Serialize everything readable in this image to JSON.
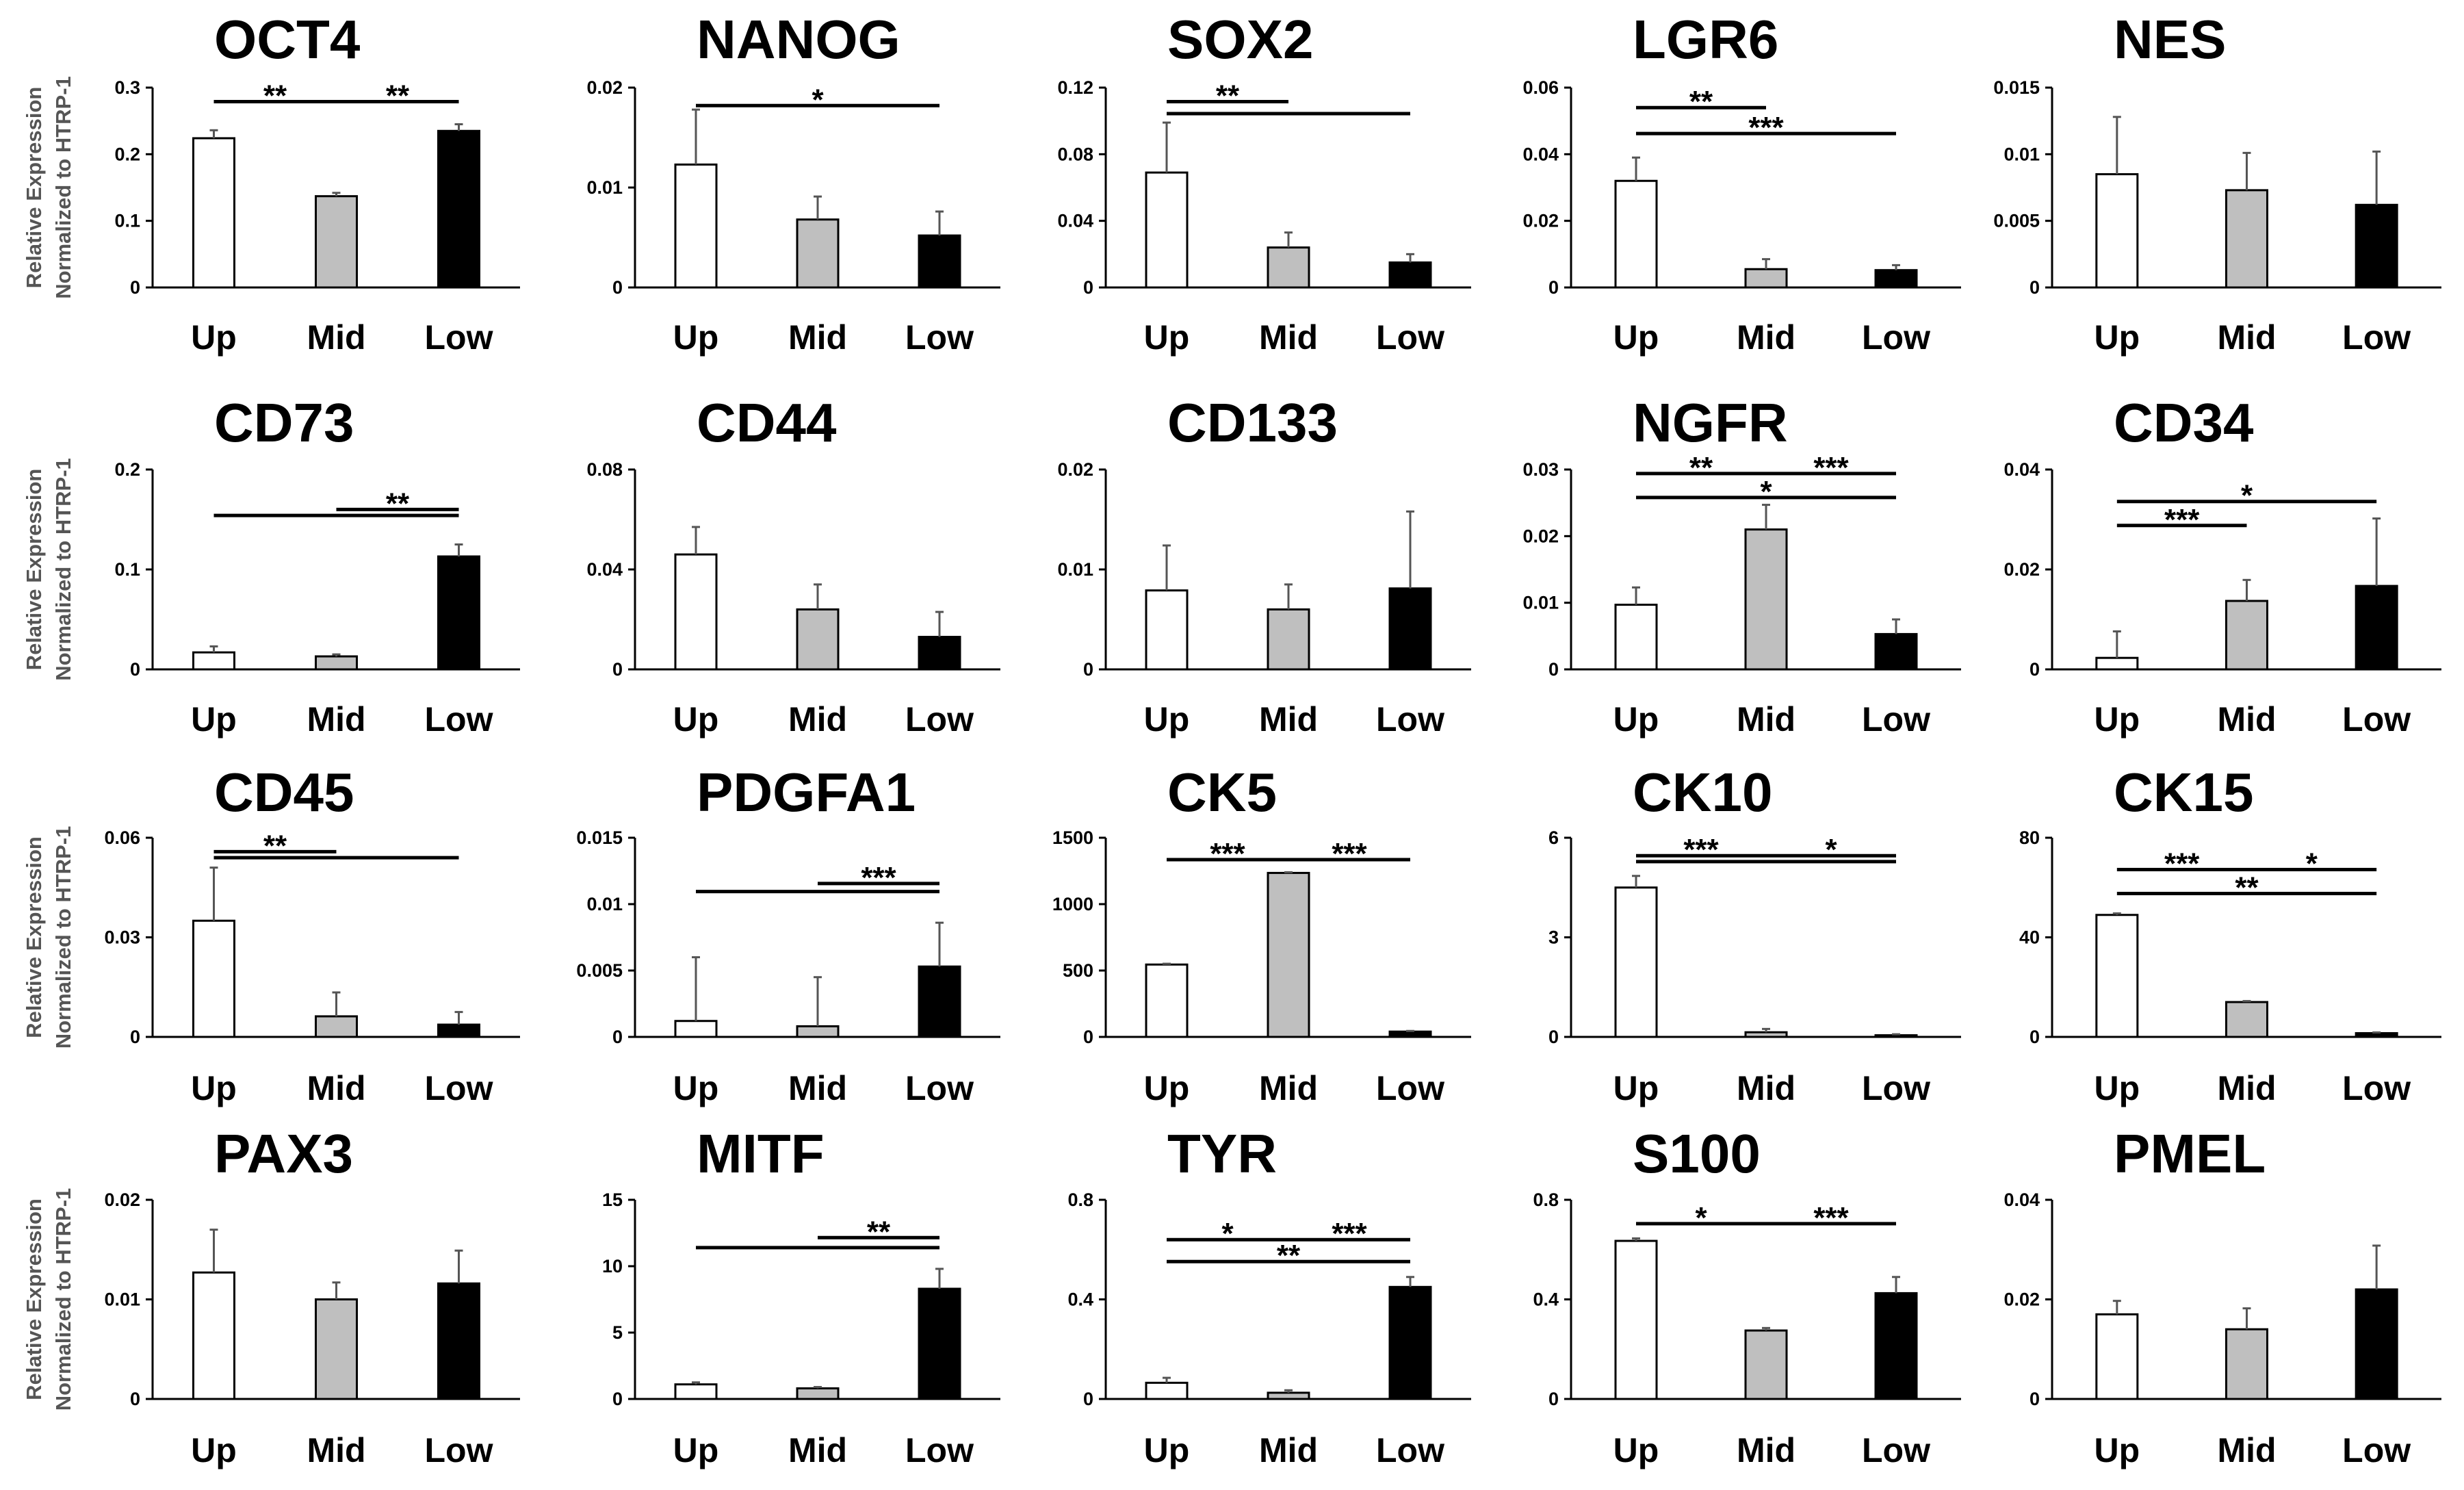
{
  "y_axis_label_line1": "Relative Expression",
  "y_axis_label_line2": "Normalized to HTRP-1",
  "colors": {
    "Up": "#ffffff",
    "Mid": "#bfbfbf",
    "Low": "#000000",
    "axis": "#000000"
  },
  "chart_data": [
    {
      "type": "bar",
      "title": "OCT4",
      "categories": [
        "Up",
        "Mid",
        "Low"
      ],
      "values": [
        0.224,
        0.137,
        0.235
      ],
      "errors": [
        0.012,
        0.005,
        0.01
      ],
      "ylim": [
        0,
        0.3
      ],
      "yticks": [
        "0",
        "0.1",
        "0.2",
        "0.3"
      ],
      "significance": [
        {
          "from": 0,
          "to": 1,
          "label": "**",
          "level": 0.93
        },
        {
          "from": 1,
          "to": 2,
          "label": "**",
          "level": 0.93
        }
      ]
    },
    {
      "type": "bar",
      "title": "NANOG",
      "categories": [
        "Up",
        "Mid",
        "Low"
      ],
      "values": [
        0.0123,
        0.0068,
        0.0052
      ],
      "errors": [
        0.0055,
        0.0023,
        0.0024
      ],
      "ylim": [
        0,
        0.02
      ],
      "yticks": [
        "0",
        "0.01",
        "0.02"
      ],
      "significance": [
        {
          "from": 0,
          "to": 2,
          "label": "*",
          "level": 0.91
        }
      ]
    },
    {
      "type": "bar",
      "title": "SOX2",
      "categories": [
        "Up",
        "Mid",
        "Low"
      ],
      "values": [
        0.069,
        0.024,
        0.015
      ],
      "errors": [
        0.03,
        0.009,
        0.005
      ],
      "ylim": [
        0,
        0.12
      ],
      "yticks": [
        "0",
        "0.04",
        "0.08",
        "0.12"
      ],
      "significance": [
        {
          "from": 0,
          "to": 1,
          "label": "**",
          "level": 0.93
        },
        {
          "from": 0,
          "to": 2,
          "label": "",
          "level": 0.87
        }
      ]
    },
    {
      "type": "bar",
      "title": "LGR6",
      "categories": [
        "Up",
        "Mid",
        "Low"
      ],
      "values": [
        0.032,
        0.0055,
        0.0052
      ],
      "errors": [
        0.007,
        0.003,
        0.0015
      ],
      "ylim": [
        0,
        0.06
      ],
      "yticks": [
        "0",
        "0.02",
        "0.04",
        "0.06"
      ],
      "significance": [
        {
          "from": 0,
          "to": 1,
          "label": "**",
          "level": 0.9
        },
        {
          "from": 0,
          "to": 2,
          "label": "***",
          "level": 0.77
        }
      ]
    },
    {
      "type": "bar",
      "title": "NES",
      "categories": [
        "Up",
        "Mid",
        "Low"
      ],
      "values": [
        0.0085,
        0.0073,
        0.0062
      ],
      "errors": [
        0.0043,
        0.0028,
        0.004
      ],
      "ylim": [
        0,
        0.015
      ],
      "yticks": [
        "0",
        "0.005",
        "0.01",
        "0.015"
      ],
      "significance": []
    },
    {
      "type": "bar",
      "title": "CD73",
      "categories": [
        "Up",
        "Mid",
        "Low"
      ],
      "values": [
        0.017,
        0.013,
        0.113
      ],
      "errors": [
        0.006,
        0.002,
        0.012
      ],
      "ylim": [
        0,
        0.2
      ],
      "yticks": [
        "0",
        "0.1",
        "0.2"
      ],
      "significance": [
        {
          "from": 0,
          "to": 2,
          "label": "",
          "level": 0.77
        },
        {
          "from": 1,
          "to": 2,
          "label": "**",
          "level": 0.8
        }
      ]
    },
    {
      "type": "bar",
      "title": "CD44",
      "categories": [
        "Up",
        "Mid",
        "Low"
      ],
      "values": [
        0.046,
        0.024,
        0.013
      ],
      "errors": [
        0.011,
        0.01,
        0.01
      ],
      "ylim": [
        0,
        0.08
      ],
      "yticks": [
        "0",
        "0.04",
        "0.08"
      ],
      "significance": []
    },
    {
      "type": "bar",
      "title": "CD133",
      "categories": [
        "Up",
        "Mid",
        "Low"
      ],
      "values": [
        0.0079,
        0.006,
        0.0081
      ],
      "errors": [
        0.0045,
        0.0025,
        0.0077
      ],
      "ylim": [
        0,
        0.02
      ],
      "yticks": [
        "0",
        "0.01",
        "0.02"
      ],
      "significance": []
    },
    {
      "type": "bar",
      "title": "NGFR",
      "categories": [
        "Up",
        "Mid",
        "Low"
      ],
      "values": [
        0.0097,
        0.021,
        0.0053
      ],
      "errors": [
        0.0026,
        0.0037,
        0.0022
      ],
      "ylim": [
        0,
        0.03
      ],
      "yticks": [
        "0",
        "0.01",
        "0.02",
        "0.03"
      ],
      "significance": [
        {
          "from": 0,
          "to": 1,
          "label": "**",
          "level": 0.98
        },
        {
          "from": 1,
          "to": 2,
          "label": "***",
          "level": 0.98
        },
        {
          "from": 0,
          "to": 2,
          "label": "*",
          "level": 0.86
        }
      ]
    },
    {
      "type": "bar",
      "title": "CD34",
      "categories": [
        "Up",
        "Mid",
        "Low"
      ],
      "values": [
        0.0023,
        0.0137,
        0.0167
      ],
      "errors": [
        0.0053,
        0.0042,
        0.0135
      ],
      "ylim": [
        0,
        0.04
      ],
      "yticks": [
        "0",
        "0.02",
        "0.04"
      ],
      "significance": [
        {
          "from": 0,
          "to": 2,
          "label": "*",
          "level": 0.84
        },
        {
          "from": 0,
          "to": 1,
          "label": "***",
          "level": 0.72
        }
      ]
    },
    {
      "type": "bar",
      "title": "CD45",
      "categories": [
        "Up",
        "Mid",
        "Low"
      ],
      "values": [
        0.035,
        0.0062,
        0.0037
      ],
      "errors": [
        0.016,
        0.0072,
        0.0038
      ],
      "ylim": [
        0,
        0.06
      ],
      "yticks": [
        "0",
        "0.03",
        "0.06"
      ],
      "significance": [
        {
          "from": 0,
          "to": 1,
          "label": "**",
          "level": 0.93
        },
        {
          "from": 0,
          "to": 2,
          "label": "",
          "level": 0.9
        }
      ]
    },
    {
      "type": "bar",
      "title": "PDGFA1",
      "categories": [
        "Up",
        "Mid",
        "Low"
      ],
      "values": [
        0.0012,
        0.0008,
        0.0053
      ],
      "errors": [
        0.0048,
        0.0037,
        0.0033
      ],
      "ylim": [
        0,
        0.015
      ],
      "yticks": [
        "0",
        "0.005",
        "0.01",
        "0.015"
      ],
      "significance": [
        {
          "from": 1,
          "to": 2,
          "label": "***",
          "level": 0.77
        },
        {
          "from": 0,
          "to": 2,
          "label": "",
          "level": 0.73
        }
      ]
    },
    {
      "type": "bar",
      "title": "CK5",
      "categories": [
        "Up",
        "Mid",
        "Low"
      ],
      "values": [
        545,
        1235,
        40
      ],
      "errors": [
        6,
        5,
        5
      ],
      "ylim": [
        0,
        1500
      ],
      "yticks": [
        "0",
        "500",
        "1000",
        "1500"
      ],
      "significance": [
        {
          "from": 0,
          "to": 1,
          "label": "***",
          "level": 0.89
        },
        {
          "from": 1,
          "to": 2,
          "label": "***",
          "level": 0.89
        }
      ]
    },
    {
      "type": "bar",
      "title": "CK10",
      "categories": [
        "Up",
        "Mid",
        "Low"
      ],
      "values": [
        4.5,
        0.14,
        0.05
      ],
      "errors": [
        0.35,
        0.1,
        0.03
      ],
      "ylim": [
        0,
        6
      ],
      "yticks": [
        "0",
        "3",
        "6"
      ],
      "significance": [
        {
          "from": 0,
          "to": 1,
          "label": "***",
          "level": 0.91
        },
        {
          "from": 1,
          "to": 2,
          "label": "*",
          "level": 0.91
        },
        {
          "from": 0,
          "to": 2,
          "label": "",
          "level": 0.88
        }
      ]
    },
    {
      "type": "bar",
      "title": "CK15",
      "categories": [
        "Up",
        "Mid",
        "Low"
      ],
      "values": [
        49,
        14,
        1.5
      ],
      "errors": [
        0.6,
        0.4,
        0.3
      ],
      "ylim": [
        0,
        80
      ],
      "yticks": [
        "0",
        "40",
        "80"
      ],
      "significance": [
        {
          "from": 0,
          "to": 1,
          "label": "***",
          "level": 0.84
        },
        {
          "from": 1,
          "to": 2,
          "label": "*",
          "level": 0.84
        },
        {
          "from": 0,
          "to": 2,
          "label": "**",
          "level": 0.72
        }
      ]
    },
    {
      "type": "bar",
      "title": "PAX3",
      "categories": [
        "Up",
        "Mid",
        "Low"
      ],
      "values": [
        0.0127,
        0.01,
        0.0116
      ],
      "errors": [
        0.0043,
        0.0017,
        0.0033
      ],
      "ylim": [
        0,
        0.02
      ],
      "yticks": [
        "0",
        "0.01",
        "0.02"
      ],
      "significance": []
    },
    {
      "type": "bar",
      "title": "MITF",
      "categories": [
        "Up",
        "Mid",
        "Low"
      ],
      "values": [
        1.1,
        0.8,
        8.3
      ],
      "errors": [
        0.15,
        0.1,
        1.5
      ],
      "ylim": [
        0,
        15
      ],
      "yticks": [
        "0",
        "5",
        "10",
        "15"
      ],
      "significance": [
        {
          "from": 1,
          "to": 2,
          "label": "**",
          "level": 0.81
        },
        {
          "from": 0,
          "to": 2,
          "label": "",
          "level": 0.76
        }
      ]
    },
    {
      "type": "bar",
      "title": "TYR",
      "categories": [
        "Up",
        "Mid",
        "Low"
      ],
      "values": [
        0.065,
        0.025,
        0.45
      ],
      "errors": [
        0.02,
        0.01,
        0.04
      ],
      "ylim": [
        0,
        0.8
      ],
      "yticks": [
        "0",
        "0.4",
        "0.8"
      ],
      "significance": [
        {
          "from": 0,
          "to": 1,
          "label": "*",
          "level": 0.8
        },
        {
          "from": 1,
          "to": 2,
          "label": "***",
          "level": 0.8
        },
        {
          "from": 0,
          "to": 2,
          "label": "**",
          "level": 0.69
        }
      ]
    },
    {
      "type": "bar",
      "title": "S100",
      "categories": [
        "Up",
        "Mid",
        "Low"
      ],
      "values": [
        0.635,
        0.275,
        0.425
      ],
      "errors": [
        0.01,
        0.01,
        0.065
      ],
      "ylim": [
        0,
        0.8
      ],
      "yticks": [
        "0",
        "0.4",
        "0.8"
      ],
      "significance": [
        {
          "from": 0,
          "to": 1,
          "label": "*",
          "level": 0.88
        },
        {
          "from": 1,
          "to": 2,
          "label": "***",
          "level": 0.88
        }
      ]
    },
    {
      "type": "bar",
      "title": "PMEL",
      "categories": [
        "Up",
        "Mid",
        "Low"
      ],
      "values": [
        0.017,
        0.014,
        0.022
      ],
      "errors": [
        0.0027,
        0.0042,
        0.0088
      ],
      "ylim": [
        0,
        0.04
      ],
      "yticks": [
        "0",
        "0.02",
        "0.04"
      ],
      "significance": []
    }
  ]
}
